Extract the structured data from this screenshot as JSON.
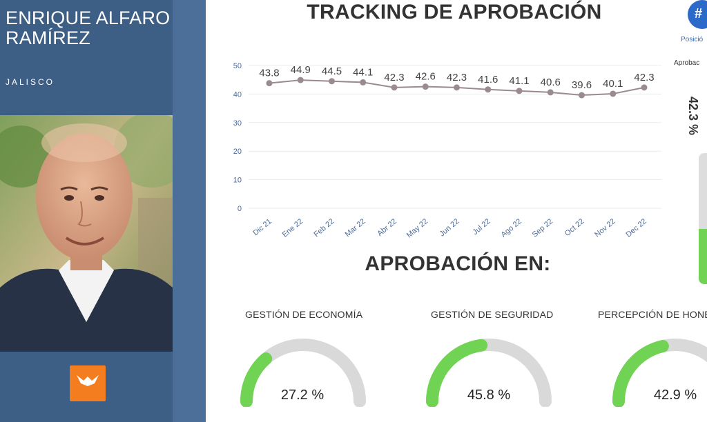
{
  "profile": {
    "name": "ENRIQUE ALFARO RAMÍREZ",
    "state": "JALISCO",
    "party_color": "#f47d20"
  },
  "tracking": {
    "title": "TRACKING DE APROBACIÓN"
  },
  "chart_data": {
    "type": "line",
    "title": "TRACKING DE APROBACIÓN",
    "categories": [
      "Dic 21",
      "Ene 22",
      "Feb 22",
      "Mar 22",
      "Abr 22",
      "May 22",
      "Jun 22",
      "Jul 22",
      "Ago 22",
      "Sep 22",
      "Oct 22",
      "Nov 22",
      "Dec 22"
    ],
    "values": [
      43.8,
      44.9,
      44.5,
      44.1,
      42.3,
      42.6,
      42.3,
      41.6,
      41.1,
      40.6,
      39.6,
      40.1,
      42.3
    ],
    "labels": [
      "43.8",
      "44.9",
      "44.5",
      "44.1",
      "42.3",
      "42.6",
      "42.3",
      "41.6",
      "41.1",
      "40.6",
      "39.6",
      "40.1",
      "42.3"
    ],
    "yticks": [
      "0",
      "10",
      "20",
      "30",
      "40",
      "50"
    ],
    "ylim": [
      0,
      50
    ],
    "grid": true,
    "line_color": "#9a8a92"
  },
  "approval": {
    "title": "APROBACIÓN EN:",
    "gauges": [
      {
        "label": "GESTIÓN DE ECONOMÍA",
        "value": 27.2,
        "display": "27.2 %"
      },
      {
        "label": "GESTIÓN DE SEGURIDAD",
        "value": 45.8,
        "display": "45.8 %"
      },
      {
        "label": "PERCEPCIÓN DE HONE",
        "value": 42.9,
        "display": "42.9 %"
      }
    ],
    "fill_color": "#71d353",
    "track_color": "#d9d9d9"
  },
  "side": {
    "rank_badge": "#",
    "rank_label": "Posició",
    "label": "Aprobac",
    "value": "42.3 %"
  }
}
